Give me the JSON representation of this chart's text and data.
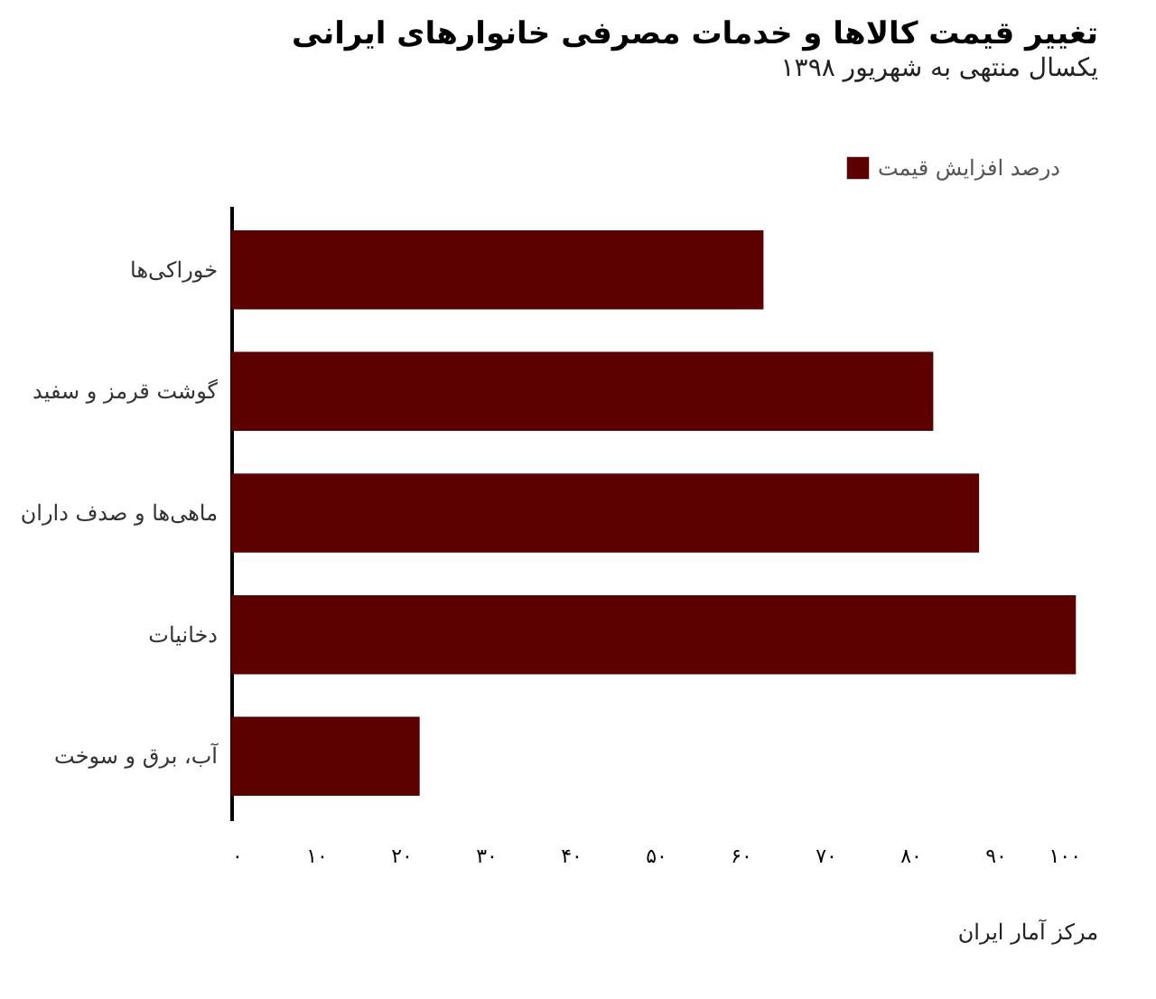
{
  "chart_data": {
    "type": "bar",
    "orientation": "horizontal",
    "title": "تغییر قیمت کالاها و خدمات مصرفی خانوارهای ایرانی",
    "subtitle": "یکسال منتهی به شهریور ۱۳۹۸",
    "categories": [
      "خوراکی‌ها",
      "گوشت قرمز و سفید",
      "ماهی‌ها و صدف داران",
      "دخانیات",
      "آب، برق و سوخت"
    ],
    "series": [
      {
        "name": "درصد افزایش قیمت",
        "color": "#5c0000",
        "values": [
          62.7,
          82.7,
          88.1,
          99.5,
          22.2
        ]
      }
    ],
    "xlim": [
      0,
      100
    ],
    "xticks": [
      {
        "value": 0,
        "label": "۰"
      },
      {
        "value": 10,
        "label": "۱۰"
      },
      {
        "value": 20,
        "label": "۲۰"
      },
      {
        "value": 30,
        "label": "۳۰"
      },
      {
        "value": 40,
        "label": "۴۰"
      },
      {
        "value": 50,
        "label": "۵۰"
      },
      {
        "value": 60,
        "label": "۶۰"
      },
      {
        "value": 70,
        "label": "۷۰"
      },
      {
        "value": 80,
        "label": "۸۰"
      },
      {
        "value": 90,
        "label": "۹۰"
      },
      {
        "value": 100,
        "label": "۱۰۰"
      }
    ],
    "grid": false,
    "legend": "top right",
    "annotations": [
      "مرکز آمار ایران"
    ]
  }
}
